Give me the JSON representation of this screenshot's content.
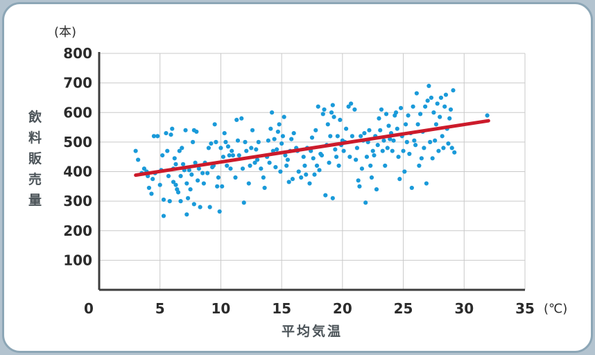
{
  "chart_data": {
    "type": "scatter",
    "title": "",
    "xlabel": "平均気温",
    "ylabel": "飲料販売量",
    "x_unit": "(℃)",
    "y_unit": "(本)",
    "xlim": [
      0,
      35
    ],
    "ylim": [
      0,
      800
    ],
    "x_ticks": [
      "0",
      "5",
      "10",
      "15",
      "20",
      "25",
      "30",
      "35"
    ],
    "y_ticks": [
      "100",
      "200",
      "300",
      "400",
      "500",
      "600",
      "700",
      "800"
    ],
    "grid": true,
    "point_color": "#1a9ad9",
    "trend_color": "#cc1b2b",
    "trendline": {
      "x": [
        3,
        32
      ],
      "y": [
        388,
        572
      ]
    },
    "points": [
      [
        3.0,
        470
      ],
      [
        3.2,
        440
      ],
      [
        3.5,
        395
      ],
      [
        3.7,
        410
      ],
      [
        3.9,
        400
      ],
      [
        4.0,
        385
      ],
      [
        4.1,
        345
      ],
      [
        4.3,
        325
      ],
      [
        4.4,
        375
      ],
      [
        4.5,
        520
      ],
      [
        4.6,
        395
      ],
      [
        4.8,
        520
      ],
      [
        5.0,
        355
      ],
      [
        5.1,
        405
      ],
      [
        5.2,
        455
      ],
      [
        5.3,
        305
      ],
      [
        5.3,
        250
      ],
      [
        5.5,
        530
      ],
      [
        5.6,
        470
      ],
      [
        5.7,
        385
      ],
      [
        5.8,
        300
      ],
      [
        5.9,
        525
      ],
      [
        6.0,
        545
      ],
      [
        6.1,
        410
      ],
      [
        6.1,
        365
      ],
      [
        6.2,
        445
      ],
      [
        6.3,
        425
      ],
      [
        6.3,
        355
      ],
      [
        6.4,
        340
      ],
      [
        6.5,
        330
      ],
      [
        6.6,
        470
      ],
      [
        6.7,
        385
      ],
      [
        6.7,
        300
      ],
      [
        6.8,
        480
      ],
      [
        6.9,
        425
      ],
      [
        7.0,
        405
      ],
      [
        7.1,
        540
      ],
      [
        7.2,
        360
      ],
      [
        7.2,
        255
      ],
      [
        7.3,
        310
      ],
      [
        7.4,
        405
      ],
      [
        7.5,
        340
      ],
      [
        7.6,
        390
      ],
      [
        7.7,
        500
      ],
      [
        7.8,
        540
      ],
      [
        7.8,
        290
      ],
      [
        7.9,
        430
      ],
      [
        8.0,
        535
      ],
      [
        8.1,
        370
      ],
      [
        8.2,
        410
      ],
      [
        8.3,
        280
      ],
      [
        8.5,
        395
      ],
      [
        8.6,
        360
      ],
      [
        8.7,
        430
      ],
      [
        8.9,
        395
      ],
      [
        9.0,
        480
      ],
      [
        9.1,
        280
      ],
      [
        9.2,
        495
      ],
      [
        9.3,
        415
      ],
      [
        9.4,
        420
      ],
      [
        9.5,
        560
      ],
      [
        9.6,
        500
      ],
      [
        9.7,
        350
      ],
      [
        9.8,
        380
      ],
      [
        9.9,
        265
      ],
      [
        10.0,
        480
      ],
      [
        10.1,
        350
      ],
      [
        10.2,
        450
      ],
      [
        10.3,
        530
      ],
      [
        10.4,
        500
      ],
      [
        10.5,
        420
      ],
      [
        10.6,
        485
      ],
      [
        10.7,
        455
      ],
      [
        10.8,
        410
      ],
      [
        10.9,
        470
      ],
      [
        11.0,
        455
      ],
      [
        11.2,
        380
      ],
      [
        11.3,
        575
      ],
      [
        11.4,
        505
      ],
      [
        11.5,
        455
      ],
      [
        11.7,
        580
      ],
      [
        11.8,
        410
      ],
      [
        11.9,
        295
      ],
      [
        12.0,
        500
      ],
      [
        12.1,
        470
      ],
      [
        12.3,
        360
      ],
      [
        12.4,
        420
      ],
      [
        12.5,
        480
      ],
      [
        12.6,
        540
      ],
      [
        12.8,
        430
      ],
      [
        12.9,
        475
      ],
      [
        13.0,
        440
      ],
      [
        13.1,
        500
      ],
      [
        13.3,
        410
      ],
      [
        13.5,
        380
      ],
      [
        13.6,
        345
      ],
      [
        13.8,
        450
      ],
      [
        13.9,
        505
      ],
      [
        14.0,
        430
      ],
      [
        14.1,
        545
      ],
      [
        14.2,
        600
      ],
      [
        14.3,
        470
      ],
      [
        14.4,
        510
      ],
      [
        14.5,
        415
      ],
      [
        14.6,
        475
      ],
      [
        14.7,
        535
      ],
      [
        14.8,
        560
      ],
      [
        14.9,
        400
      ],
      [
        15.0,
        495
      ],
      [
        15.1,
        520
      ],
      [
        15.2,
        585
      ],
      [
        15.3,
        455
      ],
      [
        15.4,
        420
      ],
      [
        15.5,
        440
      ],
      [
        15.6,
        365
      ],
      [
        15.7,
        470
      ],
      [
        15.8,
        510
      ],
      [
        15.9,
        375
      ],
      [
        16.0,
        530
      ],
      [
        16.2,
        480
      ],
      [
        16.3,
        470
      ],
      [
        16.4,
        400
      ],
      [
        16.6,
        380
      ],
      [
        16.8,
        450
      ],
      [
        16.9,
        420
      ],
      [
        17.0,
        390
      ],
      [
        17.1,
        480
      ],
      [
        17.3,
        360
      ],
      [
        17.4,
        470
      ],
      [
        17.5,
        515
      ],
      [
        17.6,
        445
      ],
      [
        17.7,
        390
      ],
      [
        17.8,
        540
      ],
      [
        17.9,
        420
      ],
      [
        18.0,
        620
      ],
      [
        18.1,
        405
      ],
      [
        18.2,
        460
      ],
      [
        18.3,
        455
      ],
      [
        18.4,
        595
      ],
      [
        18.5,
        610
      ],
      [
        18.6,
        320
      ],
      [
        18.7,
        490
      ],
      [
        18.8,
        560
      ],
      [
        18.9,
        430
      ],
      [
        19.0,
        520
      ],
      [
        19.1,
        600
      ],
      [
        19.2,
        625
      ],
      [
        19.2,
        310
      ],
      [
        19.3,
        585
      ],
      [
        19.4,
        475
      ],
      [
        19.5,
        450
      ],
      [
        19.6,
        520
      ],
      [
        19.7,
        420
      ],
      [
        19.8,
        575
      ],
      [
        19.9,
        490
      ],
      [
        20.0,
        505
      ],
      [
        20.1,
        470
      ],
      [
        20.2,
        500
      ],
      [
        20.3,
        545
      ],
      [
        20.5,
        620
      ],
      [
        20.6,
        450
      ],
      [
        20.7,
        630
      ],
      [
        20.8,
        520
      ],
      [
        21.0,
        610
      ],
      [
        21.1,
        440
      ],
      [
        21.2,
        480
      ],
      [
        21.3,
        370
      ],
      [
        21.4,
        350
      ],
      [
        21.5,
        520
      ],
      [
        21.6,
        410
      ],
      [
        21.7,
        505
      ],
      [
        21.8,
        530
      ],
      [
        21.9,
        295
      ],
      [
        22.0,
        450
      ],
      [
        22.1,
        500
      ],
      [
        22.2,
        540
      ],
      [
        22.3,
        420
      ],
      [
        22.4,
        380
      ],
      [
        22.5,
        470
      ],
      [
        22.6,
        455
      ],
      [
        22.7,
        520
      ],
      [
        22.8,
        340
      ],
      [
        22.9,
        490
      ],
      [
        23.0,
        580
      ],
      [
        23.1,
        540
      ],
      [
        23.2,
        610
      ],
      [
        23.3,
        470
      ],
      [
        23.4,
        505
      ],
      [
        23.5,
        420
      ],
      [
        23.6,
        595
      ],
      [
        23.7,
        480
      ],
      [
        23.8,
        555
      ],
      [
        23.9,
        510
      ],
      [
        24.0,
        530
      ],
      [
        24.1,
        470
      ],
      [
        24.2,
        505
      ],
      [
        24.3,
        590
      ],
      [
        24.4,
        600
      ],
      [
        24.5,
        545
      ],
      [
        24.6,
        450
      ],
      [
        24.7,
        375
      ],
      [
        24.8,
        615
      ],
      [
        24.9,
        520
      ],
      [
        25.0,
        470
      ],
      [
        25.1,
        400
      ],
      [
        25.2,
        560
      ],
      [
        25.3,
        500
      ],
      [
        25.4,
        590
      ],
      [
        25.5,
        460
      ],
      [
        25.6,
        530
      ],
      [
        25.7,
        345
      ],
      [
        25.8,
        620
      ],
      [
        25.9,
        505
      ],
      [
        26.0,
        490
      ],
      [
        26.1,
        665
      ],
      [
        26.2,
        560
      ],
      [
        26.3,
        420
      ],
      [
        26.4,
        595
      ],
      [
        26.5,
        445
      ],
      [
        26.6,
        535
      ],
      [
        26.7,
        480
      ],
      [
        26.8,
        620
      ],
      [
        26.9,
        360
      ],
      [
        27.0,
        640
      ],
      [
        27.1,
        690
      ],
      [
        27.2,
        500
      ],
      [
        27.3,
        650
      ],
      [
        27.4,
        445
      ],
      [
        27.5,
        600
      ],
      [
        27.6,
        505
      ],
      [
        27.7,
        560
      ],
      [
        27.8,
        630
      ],
      [
        27.9,
        470
      ],
      [
        28.0,
        585
      ],
      [
        28.1,
        650
      ],
      [
        28.2,
        520
      ],
      [
        28.3,
        480
      ],
      [
        28.4,
        620
      ],
      [
        28.5,
        660
      ],
      [
        28.6,
        545
      ],
      [
        28.7,
        495
      ],
      [
        28.8,
        580
      ],
      [
        28.9,
        610
      ],
      [
        29.0,
        480
      ],
      [
        29.1,
        675
      ],
      [
        29.2,
        465
      ],
      [
        31.9,
        590
      ]
    ]
  }
}
